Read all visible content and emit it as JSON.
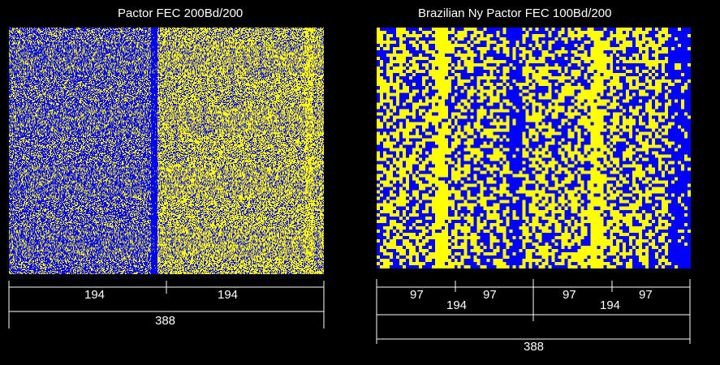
{
  "colors": {
    "background": "#000000",
    "bit_one": "#0000ff",
    "bit_zero": "#ffff00",
    "text": "#ffffff"
  },
  "panels": [
    {
      "title": "Pactor FEC 200Bd/200",
      "dimensions": [
        {
          "segments": [
            194,
            194
          ],
          "labels": [
            "194",
            "194"
          ]
        },
        {
          "segments": [
            388
          ],
          "labels": [
            "388"
          ]
        }
      ]
    },
    {
      "title": "Brazilian Ny Pactor FEC 100Bd/200",
      "dimensions": [
        {
          "segments": [
            97,
            97,
            97,
            97
          ],
          "labels": [
            "97",
            "97",
            "97",
            "97"
          ]
        },
        {
          "segments": [
            194,
            194
          ],
          "labels": [
            "194",
            "194"
          ]
        },
        {
          "segments": [
            388
          ],
          "labels": [
            "388"
          ]
        }
      ]
    }
  ]
}
